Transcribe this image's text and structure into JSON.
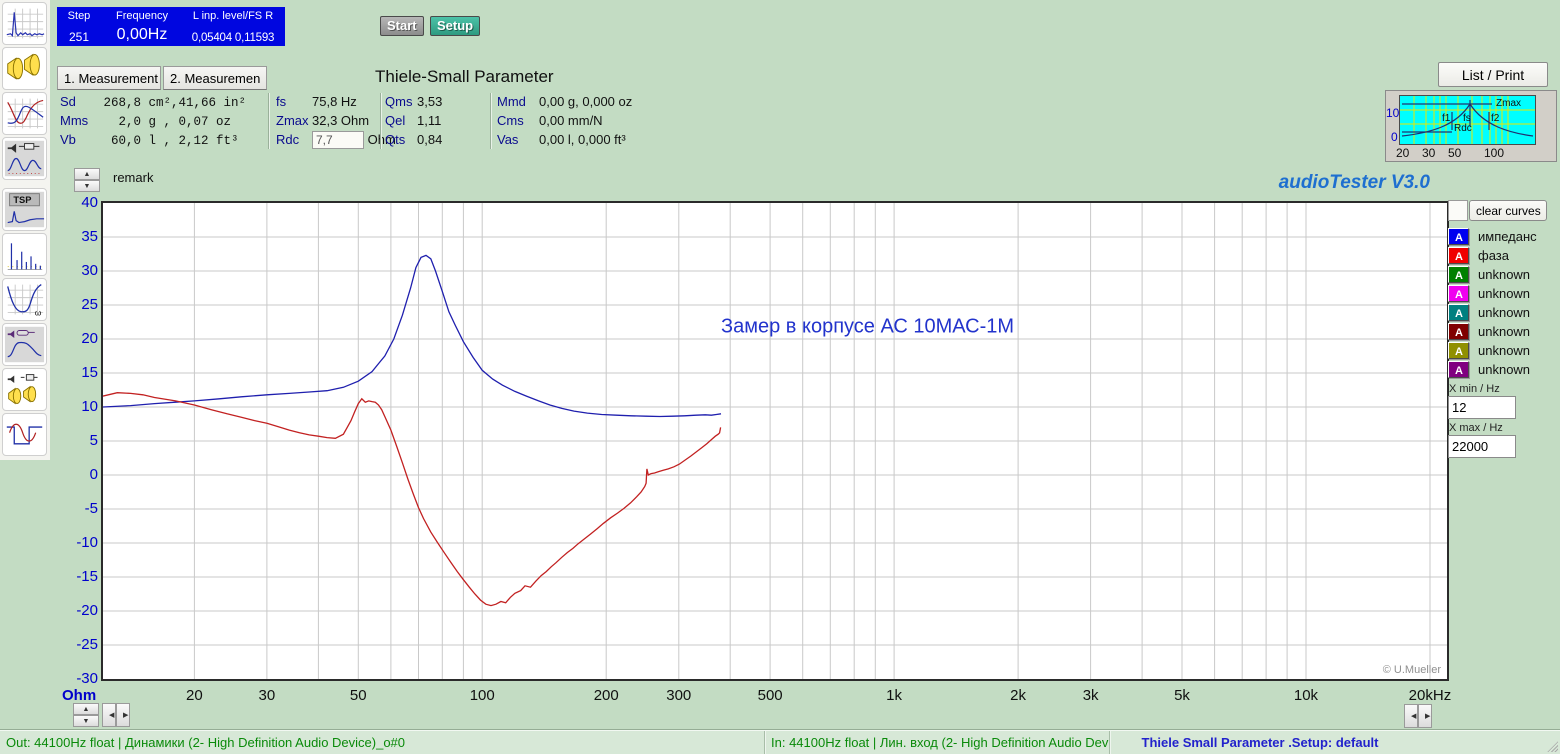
{
  "info_panel": {
    "headers": [
      "Step",
      "Frequency",
      "L inp. level/FS R"
    ],
    "values": [
      "251",
      "0,00Hz",
      "0,05404 0,11593"
    ]
  },
  "toolbar": {
    "start_label": "Start",
    "setup_label": "Setup"
  },
  "tabs": [
    {
      "label": "1. Measurement"
    },
    {
      "label": "2. Measuremen"
    }
  ],
  "ts_panel": {
    "title": "Thiele-Small Parameter",
    "col1": [
      {
        "label": "Sd",
        "value": " 268,8 cm²,41,66 in²"
      },
      {
        "label": "Mms",
        "value": "   2,0 g , 0,07 oz"
      },
      {
        "label": "Vb",
        "value": "  60,0 l , 2,12 ft³"
      }
    ],
    "col2": [
      {
        "label": "fs",
        "value": "75,8 Hz"
      },
      {
        "label": "Zmax",
        "value": "32,3 Ohm"
      },
      {
        "label": "Rdc",
        "field": "7,7",
        "unit": "Ohm"
      }
    ],
    "col3": [
      {
        "label": "Qms",
        "value": "3,53"
      },
      {
        "label": "Qel",
        "value": "1,11"
      },
      {
        "label": "Qts",
        "value": "0,84"
      }
    ],
    "col4": [
      {
        "label": "Mmd",
        "value": "0,00 g, 0,000 oz"
      },
      {
        "label": "Cms",
        "value": "0,00 mm/N"
      },
      {
        "label": "Vas",
        "value": "0,00 l, 0,000 ft³"
      }
    ]
  },
  "list_print_label": "List / Print",
  "mini_chart": {
    "zmax": "Zmax",
    "f1": "f1",
    "fs": "fs",
    "f2": "f2",
    "rdc": "Rdc",
    "y_ticks": [
      "10",
      "0"
    ],
    "x_ticks": [
      "20",
      "30",
      "50",
      "100"
    ]
  },
  "remark_label": "remark",
  "logo_text": "audioTester  V3.0",
  "legend": {
    "clear_button": "clear curves",
    "items": [
      {
        "letter": "A",
        "color": "#0000f0",
        "label": "импеданс"
      },
      {
        "letter": "A",
        "color": "#f00000",
        "label": "фаза"
      },
      {
        "letter": "A",
        "color": "#008000",
        "label": "unknown"
      },
      {
        "letter": "A",
        "color": "#f000f0",
        "label": "unknown"
      },
      {
        "letter": "A",
        "color": "#008080",
        "label": "unknown"
      },
      {
        "letter": "A",
        "color": "#800000",
        "label": "unknown"
      },
      {
        "letter": "A",
        "color": "#909000",
        "label": "unknown"
      },
      {
        "letter": "A",
        "color": "#800080",
        "label": "unknown"
      }
    ]
  },
  "x_range": {
    "min_label": "X min / Hz",
    "min_value": "12",
    "max_label": "X max / Hz",
    "max_value": "22000"
  },
  "sidebar": {
    "tsp_label": "TSP",
    "omega_label": "ω",
    "icons": [
      {
        "name": "fr-spectrum-icon"
      },
      {
        "name": "speaker-pair-icon"
      },
      {
        "name": "imp-phase-curves-icon"
      },
      {
        "name": "speaker-resistor-curve-icon"
      },
      {
        "name": "tsp-icon",
        "gap_before": true
      },
      {
        "name": "harmonics-icon"
      },
      {
        "name": "rlc-omega-icon"
      },
      {
        "name": "speaker-mic-curve-icon"
      },
      {
        "name": "calibration-speakers-icon"
      },
      {
        "name": "square-sine-icon"
      }
    ]
  },
  "chart_data": {
    "type": "line",
    "x_scale": "log",
    "xlim": [
      12,
      22000
    ],
    "ylim": [
      -30,
      40
    ],
    "ylabel": "Ohm",
    "grid": true,
    "y_ticks": [
      40,
      35,
      30,
      25,
      20,
      15,
      10,
      5,
      0,
      -5,
      -10,
      -15,
      -20,
      -25,
      -30
    ],
    "x_ticks": [
      {
        "value": 20,
        "label": "20"
      },
      {
        "value": 30,
        "label": "30"
      },
      {
        "value": 50,
        "label": "50"
      },
      {
        "value": 100,
        "label": "100"
      },
      {
        "value": 200,
        "label": "200"
      },
      {
        "value": 300,
        "label": "300"
      },
      {
        "value": 500,
        "label": "500"
      },
      {
        "value": 1000,
        "label": "1k"
      },
      {
        "value": 2000,
        "label": "2k"
      },
      {
        "value": 3000,
        "label": "3k"
      },
      {
        "value": 5000,
        "label": "5k"
      },
      {
        "value": 10000,
        "label": "10k"
      },
      {
        "value": 20000,
        "label": "20kHz"
      }
    ],
    "grid_x_values": [
      20,
      30,
      40,
      50,
      60,
      70,
      80,
      90,
      100,
      200,
      300,
      400,
      500,
      600,
      700,
      800,
      900,
      1000,
      2000,
      3000,
      4000,
      5000,
      6000,
      7000,
      8000,
      9000,
      10000,
      20000
    ],
    "annotation": {
      "text": "Замер в корпусе АС 10МАС-1М",
      "freq": 380,
      "value": 21.8
    },
    "copyright": "© U.Mueller",
    "series": [
      {
        "name": "импеданс",
        "color": "#1f1fae",
        "points": [
          [
            12,
            10.0
          ],
          [
            14,
            10.2
          ],
          [
            16,
            10.5
          ],
          [
            18,
            10.7
          ],
          [
            20,
            10.9
          ],
          [
            23,
            11.2
          ],
          [
            26,
            11.5
          ],
          [
            30,
            11.8
          ],
          [
            34,
            12.0
          ],
          [
            38,
            12.2
          ],
          [
            42,
            12.4
          ],
          [
            46,
            12.9
          ],
          [
            50,
            13.8
          ],
          [
            54,
            15.2
          ],
          [
            58,
            17.5
          ],
          [
            61,
            20.0
          ],
          [
            64,
            23.5
          ],
          [
            67,
            27.5
          ],
          [
            69,
            30.5
          ],
          [
            71,
            32.0
          ],
          [
            73,
            32.3
          ],
          [
            75,
            31.8
          ],
          [
            77,
            30.0
          ],
          [
            80,
            27.0
          ],
          [
            83,
            24.0
          ],
          [
            86,
            22.0
          ],
          [
            90,
            19.6
          ],
          [
            95,
            17.3
          ],
          [
            100,
            15.4
          ],
          [
            106,
            14.1
          ],
          [
            112,
            13.2
          ],
          [
            120,
            12.3
          ],
          [
            128,
            11.6
          ],
          [
            137,
            10.9
          ],
          [
            146,
            10.3
          ],
          [
            156,
            9.8
          ],
          [
            167,
            9.4
          ],
          [
            180,
            9.1
          ],
          [
            195,
            8.9
          ],
          [
            212,
            8.8
          ],
          [
            230,
            8.7
          ],
          [
            250,
            8.65
          ],
          [
            270,
            8.6
          ],
          [
            290,
            8.65
          ],
          [
            310,
            8.7
          ],
          [
            330,
            8.8
          ],
          [
            348,
            8.85
          ],
          [
            360,
            8.8
          ],
          [
            370,
            8.9
          ],
          [
            380,
            9.0
          ]
        ]
      },
      {
        "name": "фаза",
        "color": "#c22121",
        "points": [
          [
            12,
            11.6
          ],
          [
            13,
            12.1
          ],
          [
            14,
            12.0
          ],
          [
            15,
            11.8
          ],
          [
            16,
            11.4
          ],
          [
            18,
            10.9
          ],
          [
            20,
            10.3
          ],
          [
            22,
            9.6
          ],
          [
            24,
            9.0
          ],
          [
            26,
            8.5
          ],
          [
            28,
            8.0
          ],
          [
            30,
            7.6
          ],
          [
            32,
            7.1
          ],
          [
            34,
            6.6
          ],
          [
            36,
            6.2
          ],
          [
            38,
            5.9
          ],
          [
            40,
            5.7
          ],
          [
            42,
            5.5
          ],
          [
            44,
            5.4
          ],
          [
            46,
            6.0
          ],
          [
            47,
            7.0
          ],
          [
            48,
            8.0
          ],
          [
            49,
            9.3
          ],
          [
            50,
            10.5
          ],
          [
            51,
            11.2
          ],
          [
            52,
            10.7
          ],
          [
            53,
            10.9
          ],
          [
            54,
            10.8
          ],
          [
            55,
            10.7
          ],
          [
            56,
            10.3
          ],
          [
            57,
            9.6
          ],
          [
            58,
            8.6
          ],
          [
            60,
            6.6
          ],
          [
            62,
            4.2
          ],
          [
            64,
            1.8
          ],
          [
            66,
            -0.6
          ],
          [
            68,
            -2.8
          ],
          [
            70,
            -4.8
          ],
          [
            72,
            -6.4
          ],
          [
            75,
            -8.4
          ],
          [
            78,
            -10.0
          ],
          [
            81,
            -11.5
          ],
          [
            84,
            -12.9
          ],
          [
            87,
            -14.2
          ],
          [
            90,
            -15.4
          ],
          [
            93,
            -16.5
          ],
          [
            96,
            -17.5
          ],
          [
            99,
            -18.4
          ],
          [
            102,
            -19.0
          ],
          [
            105,
            -19.2
          ],
          [
            108,
            -19.0
          ],
          [
            111,
            -18.6
          ],
          [
            114,
            -18.8
          ],
          [
            117,
            -18.0
          ],
          [
            120,
            -17.4
          ],
          [
            124,
            -17.0
          ],
          [
            127,
            -16.3
          ],
          [
            131,
            -16.5
          ],
          [
            135,
            -15.6
          ],
          [
            139,
            -14.8
          ],
          [
            143,
            -14.2
          ],
          [
            147,
            -13.5
          ],
          [
            151,
            -12.9
          ],
          [
            156,
            -12.1
          ],
          [
            161,
            -11.4
          ],
          [
            166,
            -10.8
          ],
          [
            171,
            -10.1
          ],
          [
            177,
            -9.4
          ],
          [
            183,
            -8.7
          ],
          [
            190,
            -7.9
          ],
          [
            197,
            -7.1
          ],
          [
            205,
            -6.3
          ],
          [
            213,
            -5.6
          ],
          [
            221,
            -4.9
          ],
          [
            229,
            -4.1
          ],
          [
            237,
            -3.2
          ],
          [
            243,
            -2.5
          ],
          [
            248,
            -1.7
          ],
          [
            250,
            -1.2
          ],
          [
            251,
            0.9
          ],
          [
            253,
            0.0
          ],
          [
            257,
            0.2
          ],
          [
            262,
            0.3
          ],
          [
            268,
            0.5
          ],
          [
            275,
            0.7
          ],
          [
            283,
            0.9
          ],
          [
            292,
            1.2
          ],
          [
            301,
            1.6
          ],
          [
            311,
            2.2
          ],
          [
            321,
            2.8
          ],
          [
            331,
            3.4
          ],
          [
            341,
            4.0
          ],
          [
            351,
            4.6
          ],
          [
            360,
            5.2
          ],
          [
            368,
            5.7
          ],
          [
            374,
            6.0
          ],
          [
            377,
            6.2
          ],
          [
            379,
            7.0
          ]
        ]
      }
    ]
  },
  "status_bar": {
    "out_text": "Out: 44100Hz float  | Динамики (2- High Definition Audio Device)_o#0",
    "in_text": "In: 44100Hz float  | Лин. вход (2- High Definition Audio Device)_i#0",
    "setup_text": "Thiele Small Parameter .Setup:  default"
  }
}
